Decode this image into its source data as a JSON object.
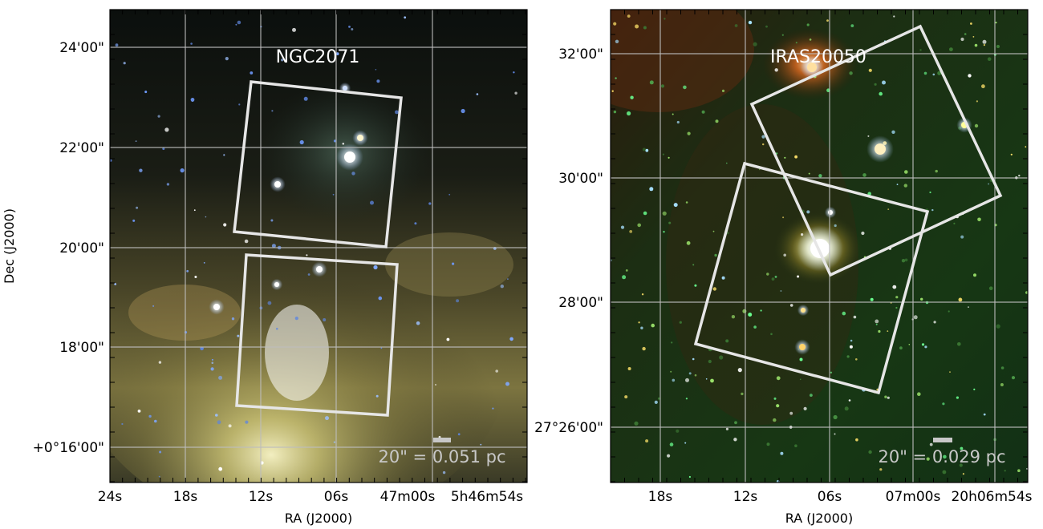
{
  "panels": [
    {
      "id": "left",
      "title": "NGC2071",
      "scalebar_label": "20\" = 0.051 pc",
      "x_ticks": [
        "24s",
        "18s",
        "12s",
        "06s",
        "47m00s",
        "5h46m54s"
      ],
      "y_ticks": [
        "24'00\"",
        "22'00\"",
        "20'00\"",
        "18'00\"",
        "+0°16'00\""
      ],
      "xlabel": "RA (J2000)",
      "ylabel": "Dec (J2000)",
      "colors": {
        "footprint": "#e6e6e6",
        "grid": "#bdbdbd"
      }
    },
    {
      "id": "right",
      "title": "IRAS20050",
      "scalebar_label": "20\" = 0.029 pc",
      "x_ticks": [
        "18s",
        "12s",
        "06s",
        "07m00s",
        "20h06m54s"
      ],
      "y_ticks": [
        "32'00\"",
        "30'00\"",
        "28'00\"",
        "27°26'00\""
      ],
      "xlabel": "RA (J2000)",
      "ylabel": "",
      "colors": {
        "footprint": "#e6e6e6",
        "grid": "#bdbdbd"
      }
    }
  ]
}
